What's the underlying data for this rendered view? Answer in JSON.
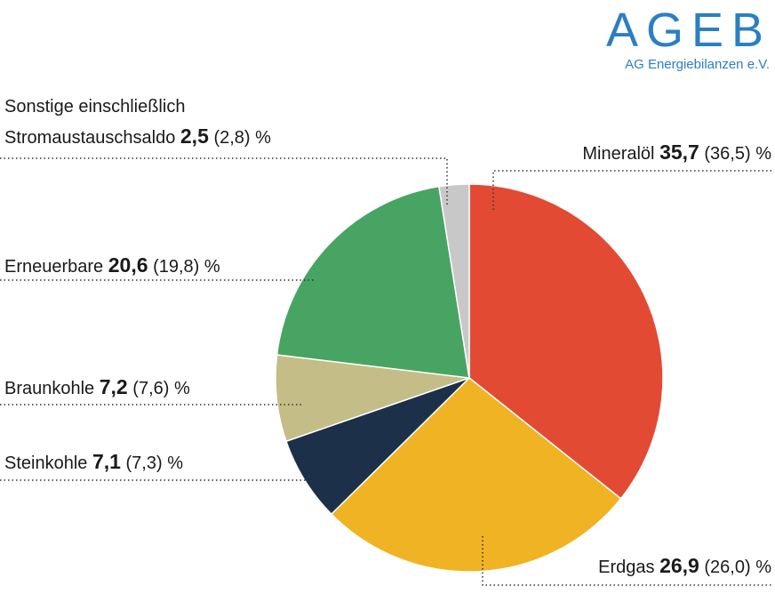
{
  "brand": {
    "title": "AGEB",
    "subtitle": "AG Energiebilanzen e.V."
  },
  "chart_data": {
    "type": "pie",
    "categories": [
      "Mineralöl",
      "Erdgas",
      "Steinkohle",
      "Braunkohle",
      "Erneuerbare",
      "Sonstige einschließlich Stromaustauschsaldo"
    ],
    "values": [
      35.7,
      26.9,
      7.1,
      7.2,
      20.6,
      2.5
    ],
    "value_labels": [
      "35,7",
      "26,9",
      "7,1",
      "7,2",
      "20,6",
      "2,5"
    ],
    "previous_labels": [
      "(36,5)",
      "(26,0)",
      "(7,3)",
      "(7,6)",
      "(19,8)",
      "(2,8)"
    ],
    "unit": "%",
    "colors": [
      "#e34a33",
      "#f0b323",
      "#1c3049",
      "#c4bd87",
      "#48a463",
      "#c8c8c8"
    ]
  }
}
